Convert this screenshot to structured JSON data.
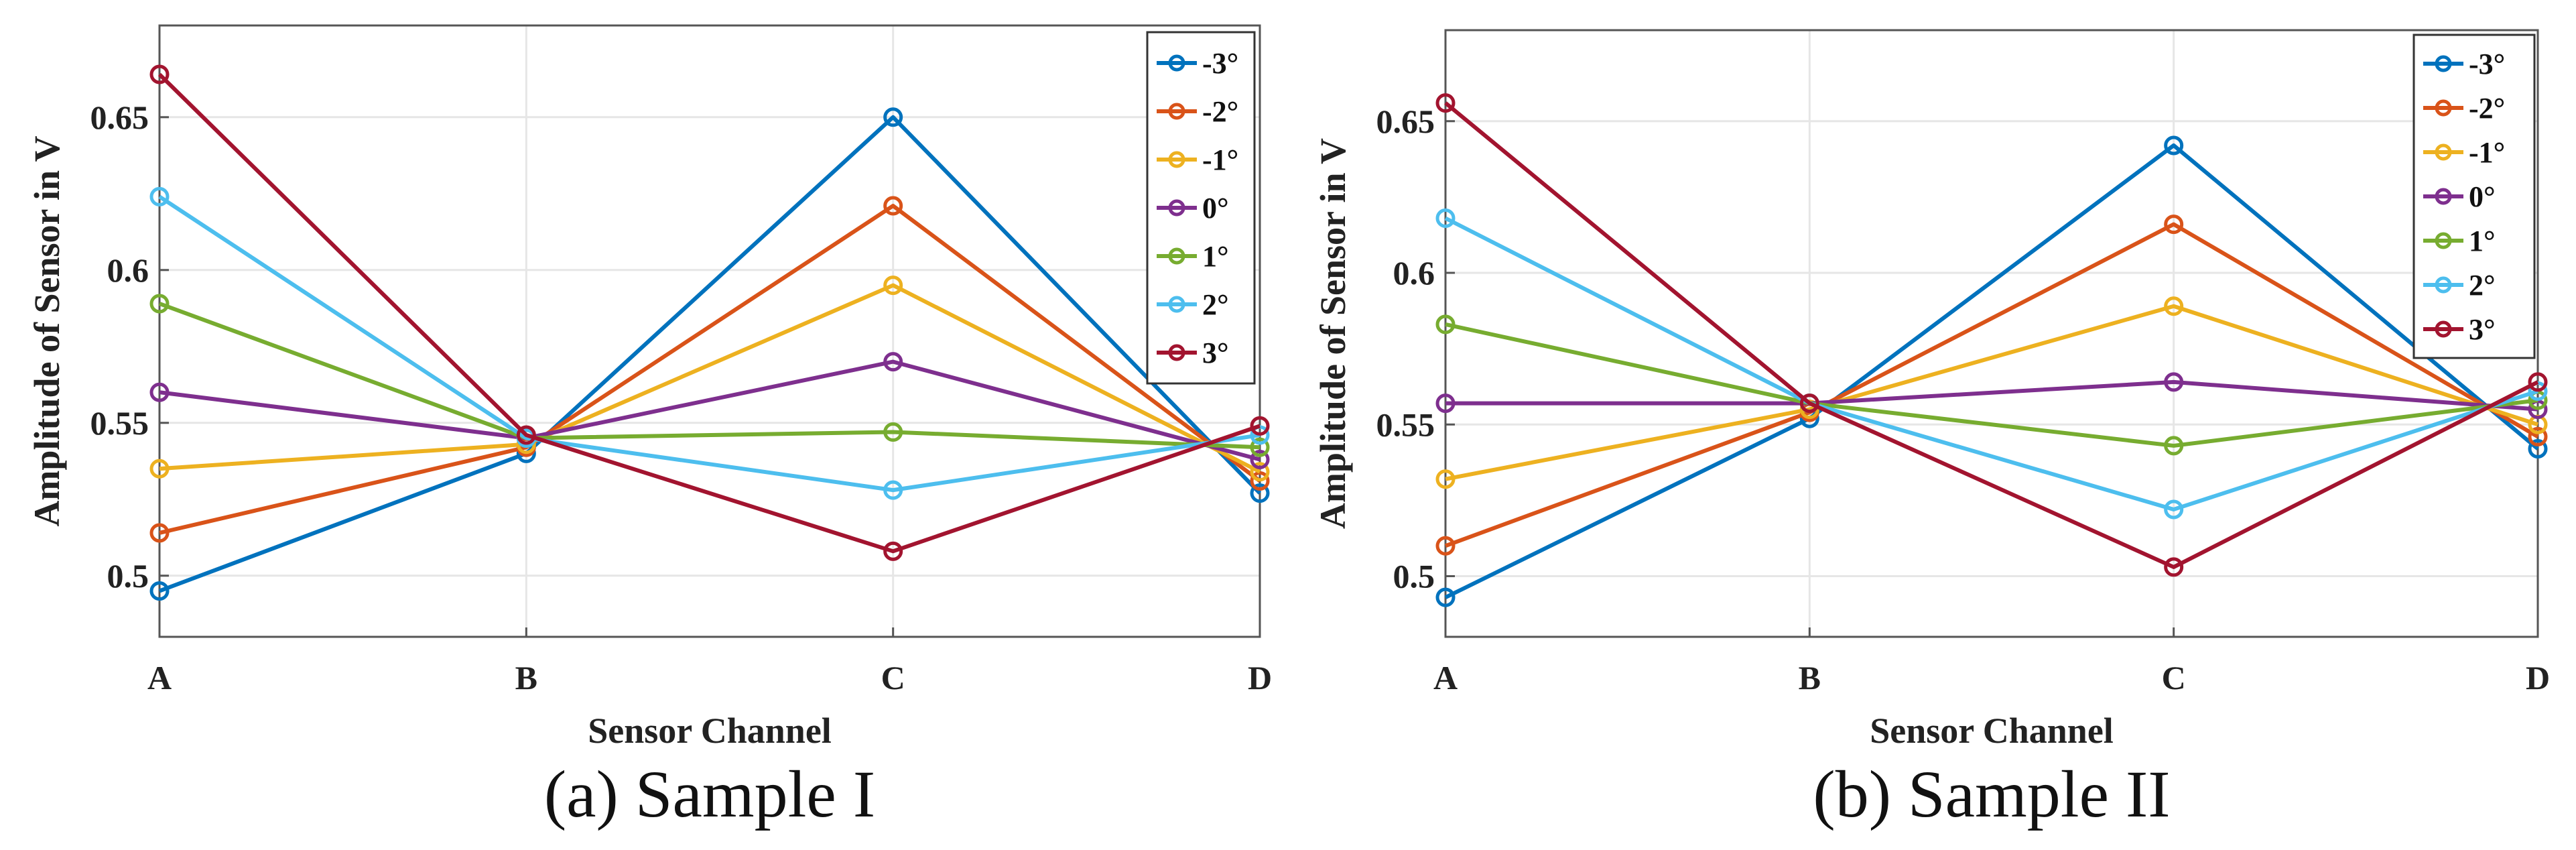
{
  "chart_data": [
    {
      "type": "line",
      "title": "",
      "caption": "(a) Sample I",
      "xlabel": "Sensor Channel",
      "ylabel": "Amplitude of Sensor in V",
      "categories": [
        "A",
        "B",
        "C",
        "D"
      ],
      "ylim": [
        0.48,
        0.68
      ],
      "yticks": [
        0.5,
        0.55,
        0.6,
        0.65
      ],
      "ytick_labels": [
        "0.5",
        "0.55",
        "0.6",
        "0.65"
      ],
      "grid": true,
      "legend_position": "top-right",
      "series": [
        {
          "name": "-3°",
          "color": "#0072BD",
          "values": [
            0.495,
            0.54,
            0.65,
            0.527
          ]
        },
        {
          "name": "-2°",
          "color": "#D95319",
          "values": [
            0.514,
            0.542,
            0.621,
            0.531
          ]
        },
        {
          "name": "-1°",
          "color": "#EDB120",
          "values": [
            0.535,
            0.543,
            0.595,
            0.534
          ]
        },
        {
          "name": "0°",
          "color": "#7E2F8E",
          "values": [
            0.56,
            0.545,
            0.57,
            0.538
          ]
        },
        {
          "name": "1°",
          "color": "#77AC30",
          "values": [
            0.589,
            0.545,
            0.547,
            0.542
          ]
        },
        {
          "name": "2°",
          "color": "#4DBEEE",
          "values": [
            0.624,
            0.545,
            0.528,
            0.546
          ]
        },
        {
          "name": "3°",
          "color": "#A2142F",
          "values": [
            0.664,
            0.546,
            0.508,
            0.549
          ]
        }
      ]
    },
    {
      "type": "line",
      "title": "",
      "caption": "(b) Sample II",
      "xlabel": "Sensor Channel",
      "ylabel": "Amplitude of Sensor in V",
      "categories": [
        "A",
        "B",
        "C",
        "D"
      ],
      "ylim": [
        0.48,
        0.68
      ],
      "yticks": [
        0.5,
        0.55,
        0.6,
        0.65
      ],
      "ytick_labels": [
        "0.5",
        "0.55",
        "0.6",
        "0.65"
      ],
      "grid": true,
      "legend_position": "top-right",
      "series": [
        {
          "name": "-3°",
          "color": "#0072BD",
          "values": [
            0.493,
            0.552,
            0.642,
            0.542
          ]
        },
        {
          "name": "-2°",
          "color": "#D95319",
          "values": [
            0.51,
            0.554,
            0.616,
            0.546
          ]
        },
        {
          "name": "-1°",
          "color": "#EDB120",
          "values": [
            0.532,
            0.555,
            0.589,
            0.55
          ]
        },
        {
          "name": "0°",
          "color": "#7E2F8E",
          "values": [
            0.557,
            0.557,
            0.564,
            0.555
          ]
        },
        {
          "name": "1°",
          "color": "#77AC30",
          "values": [
            0.583,
            0.557,
            0.543,
            0.558
          ]
        },
        {
          "name": "2°",
          "color": "#4DBEEE",
          "values": [
            0.618,
            0.557,
            0.522,
            0.561
          ]
        },
        {
          "name": "3°",
          "color": "#A2142F",
          "values": [
            0.656,
            0.557,
            0.503,
            0.564
          ]
        }
      ]
    }
  ]
}
